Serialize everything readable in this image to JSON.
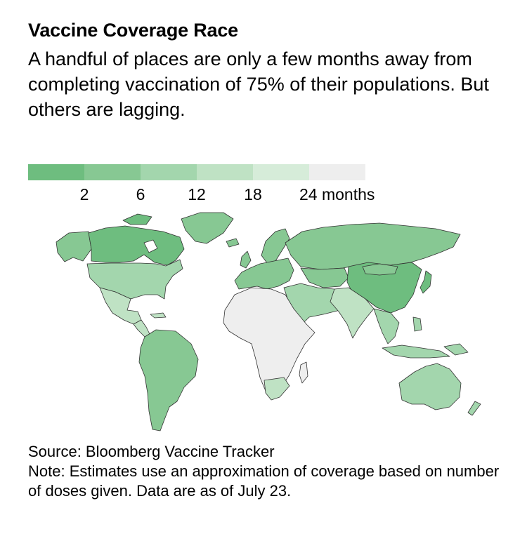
{
  "header": {
    "title": "Vaccine Coverage Race",
    "subtitle": "A handful of places are only a few months away from completing vaccination of 75% of their populations. But others are lagging."
  },
  "legend": {
    "swatch_colors": [
      "#6ebd7f",
      "#87c893",
      "#a3d6ad",
      "#bfe2c4",
      "#d6ecd9",
      "#eeeeee"
    ],
    "tick_labels": [
      "2",
      "6",
      "12",
      "18",
      "24 months"
    ]
  },
  "map": {
    "country_border_color": "#333333",
    "ocean_color": "#ffffff",
    "region_shading": [
      {
        "region": "Canada",
        "color": "#6ebd7f"
      },
      {
        "region": "Greenland",
        "color": "#87c893"
      },
      {
        "region": "Alaska",
        "color": "#87c893"
      },
      {
        "region": "United States",
        "color": "#a3d6ad"
      },
      {
        "region": "Mexico",
        "color": "#bfe2c4"
      },
      {
        "region": "South America",
        "color": "#87c893"
      },
      {
        "region": "Europe",
        "color": "#87c893"
      },
      {
        "region": "Russia",
        "color": "#87c893"
      },
      {
        "region": "China",
        "color": "#6ebd7f"
      },
      {
        "region": "India",
        "color": "#bfe2c4"
      },
      {
        "region": "Middle East",
        "color": "#a3d6ad"
      },
      {
        "region": "Africa",
        "color": "#eeeeee"
      },
      {
        "region": "Southern Africa",
        "color": "#bfe2c4"
      },
      {
        "region": "Southeast Asia",
        "color": "#a3d6ad"
      },
      {
        "region": "Australia",
        "color": "#a3d6ad"
      }
    ]
  },
  "footer": {
    "source": "Source: Bloomberg Vaccine Tracker",
    "note": "Note: Estimates use an approximation of coverage based on number of doses given. Data are as of July 23."
  }
}
